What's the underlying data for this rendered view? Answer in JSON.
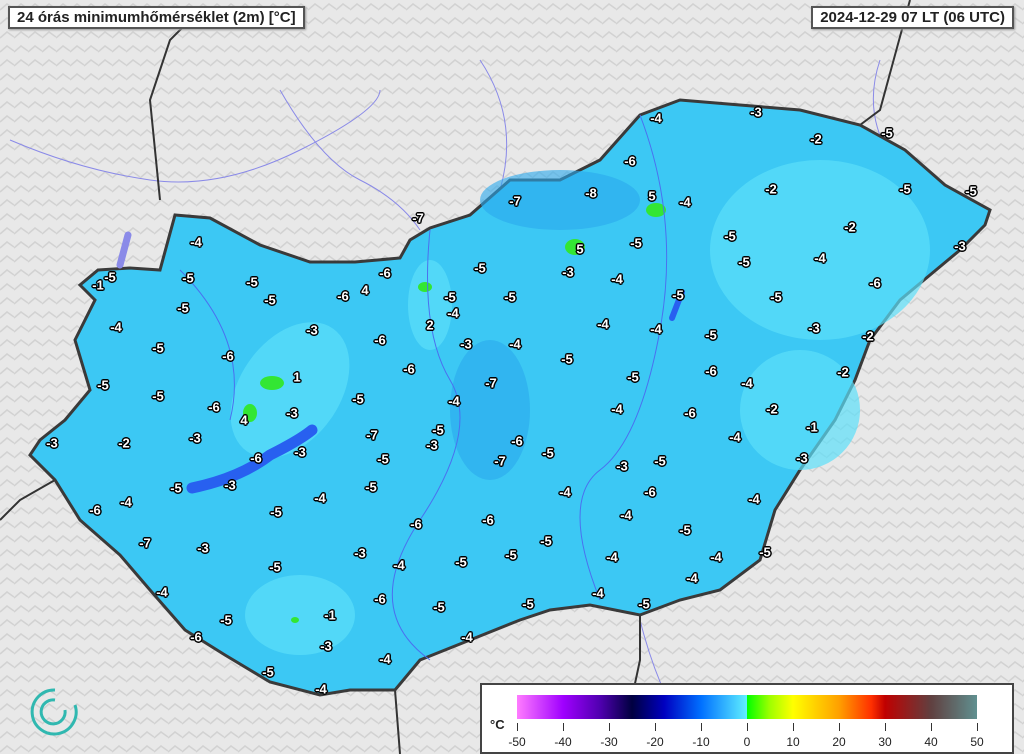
{
  "title": "24 órás minimumhőmérséklet (2m) [°C]",
  "timestamp": "2024-12-29 07 LT (06 UTC)",
  "legend": {
    "unit": "°C",
    "ticks": [
      "-50",
      "-40",
      "-30",
      "-20",
      "-10",
      "0",
      "10",
      "20",
      "30",
      "40",
      "50"
    ]
  },
  "colors": {
    "background": "#e6e6e6",
    "country_fill": "#3cc8f4",
    "border": "#444444",
    "water": "#7a8cf0"
  },
  "station_values": [
    "-4",
    "-5",
    "-1",
    "-5",
    "-5",
    "-5",
    "-5",
    "-6",
    "4",
    "-6",
    "-7",
    "-7",
    "-8",
    "-6",
    "-4",
    "-3",
    "-2",
    "-5",
    "5",
    "-4",
    "-2",
    "-5",
    "-5",
    "-2",
    "-3",
    "5",
    "-3",
    "-5",
    "-5",
    "-5",
    "-4",
    "-6",
    "-4",
    "-5",
    "-5",
    "-5",
    "-5",
    "-5",
    "2",
    "-4",
    "-3",
    "-4",
    "-5",
    "-6",
    "-3",
    "-6",
    "-4",
    "-4",
    "-4",
    "-5",
    "-3",
    "-2",
    "-5",
    "-5",
    "-5",
    "1",
    "-6",
    "-7",
    "-5",
    "-6",
    "-4",
    "-2",
    "-6",
    "4",
    "-3",
    "-5",
    "-4",
    "-4",
    "-6",
    "-2",
    "-1",
    "-3",
    "-2",
    "-3",
    "-6",
    "-3",
    "-7",
    "-5",
    "-3",
    "-6",
    "-7",
    "-5",
    "-4",
    "-3",
    "-5",
    "-3",
    "-5",
    "-5",
    "-3",
    "-5",
    "-4",
    "-4",
    "-6",
    "-4",
    "-6",
    "-4",
    "-5",
    "-6",
    "-6",
    "-4",
    "-5",
    "-7",
    "-3",
    "-3",
    "-5",
    "-5",
    "-4",
    "-4",
    "-5",
    "-5",
    "-4",
    "-5",
    "-4",
    "-4",
    "-5",
    "-6",
    "-5",
    "-5",
    "-4",
    "-5",
    "-1",
    "-6",
    "-3",
    "-4",
    "-4",
    "-5",
    "-4"
  ],
  "logo": "OMSZ"
}
